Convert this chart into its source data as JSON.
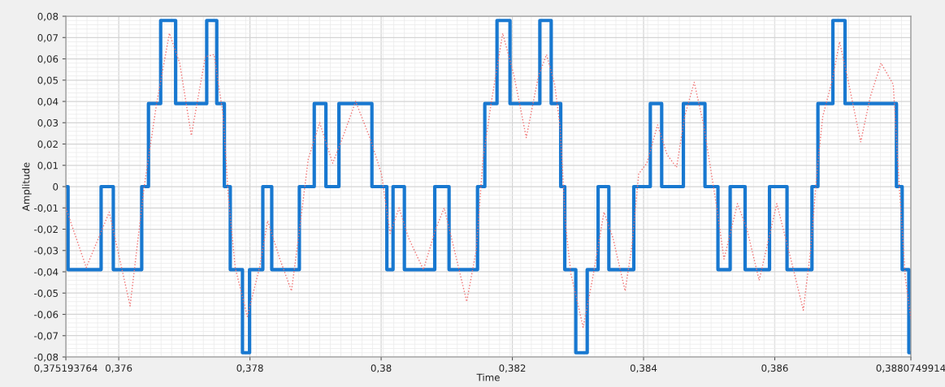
{
  "chart_data": {
    "type": "line",
    "xlabel": "Time",
    "ylabel": "Amplitude",
    "xlim": [
      0.375193764,
      0.3880749914
    ],
    "xticks": [
      {
        "value": 0.375193764,
        "label": "0,375193764"
      },
      {
        "value": 0.376,
        "label": "0,376"
      },
      {
        "value": 0.378,
        "label": "0,378"
      },
      {
        "value": 0.38,
        "label": "0,38"
      },
      {
        "value": 0.382,
        "label": "0,382"
      },
      {
        "value": 0.384,
        "label": "0,384"
      },
      {
        "value": 0.386,
        "label": "0,386"
      },
      {
        "value": 0.3880749914,
        "label": "0,3880749914"
      }
    ],
    "ylim": [
      -0.08,
      0.08
    ],
    "yticks": [
      {
        "value": -0.08,
        "label": "-0,08"
      },
      {
        "value": -0.07,
        "label": "-0,07"
      },
      {
        "value": -0.06,
        "label": "-0,06"
      },
      {
        "value": -0.05,
        "label": "-0,05"
      },
      {
        "value": -0.04,
        "label": "-0,04"
      },
      {
        "value": -0.03,
        "label": "-0,03"
      },
      {
        "value": -0.02,
        "label": "-0,02"
      },
      {
        "value": -0.01,
        "label": "-0,01"
      },
      0,
      {
        "value": 0.01,
        "label": "0,01"
      },
      {
        "value": 0.02,
        "label": "0,02"
      },
      {
        "value": 0.03,
        "label": "0,03"
      },
      {
        "value": 0.04,
        "label": "0,04"
      },
      {
        "value": 0.05,
        "label": "0,05"
      },
      {
        "value": 0.06,
        "label": "0,06"
      },
      {
        "value": 0.07,
        "label": "0,07"
      },
      {
        "value": 0.08,
        "label": "0,08"
      }
    ],
    "grid": true,
    "series": [
      {
        "line_style": "dotted",
        "color": "#f07070",
        "x": [
          0.375194,
          0.375505,
          0.375855,
          0.376173,
          0.376388,
          0.376577,
          0.376772,
          0.376929,
          0.377106,
          0.37732,
          0.377453,
          0.377589,
          0.377672,
          0.377775,
          0.37796,
          0.378146,
          0.37827,
          0.378456,
          0.378633,
          0.378744,
          0.378889,
          0.379063,
          0.379261,
          0.379425,
          0.379611,
          0.379839,
          0.380004,
          0.380136,
          0.380273,
          0.380416,
          0.380644,
          0.38083,
          0.380961,
          0.381118,
          0.381304,
          0.381449,
          0.381552,
          0.381676,
          0.381853,
          0.382026,
          0.382212,
          0.382398,
          0.382521,
          0.382645,
          0.382728,
          0.382811,
          0.382893,
          0.383079,
          0.383224,
          0.383397,
          0.383533,
          0.383719,
          0.383822,
          0.383926,
          0.38405,
          0.384214,
          0.384359,
          0.384503,
          0.384627,
          0.384772,
          0.384916,
          0.385122,
          0.385226,
          0.385432,
          0.385576,
          0.385762,
          0.386031,
          0.386237,
          0.386435,
          0.386546,
          0.38665,
          0.386732,
          0.386877,
          0.386988,
          0.387103,
          0.38731,
          0.387455,
          0.38762,
          0.387806,
          0.387888,
          0.387991,
          0.3880749914
        ],
        "values": [
          -0.01,
          -0.038,
          -0.012,
          -0.056,
          0.0,
          0.039,
          0.072,
          0.058,
          0.024,
          0.061,
          0.062,
          0.034,
          -0.005,
          -0.038,
          -0.061,
          -0.038,
          -0.016,
          -0.034,
          -0.049,
          -0.023,
          0.013,
          0.03,
          0.011,
          0.024,
          0.04,
          0.022,
          0.006,
          -0.022,
          -0.01,
          -0.024,
          -0.039,
          -0.02,
          -0.01,
          -0.03,
          -0.054,
          -0.03,
          0.013,
          0.039,
          0.072,
          0.052,
          0.023,
          0.052,
          0.062,
          0.048,
          0.028,
          -0.018,
          -0.041,
          -0.066,
          -0.043,
          -0.012,
          -0.024,
          -0.049,
          -0.028,
          0.006,
          0.011,
          0.029,
          0.015,
          0.009,
          0.033,
          0.049,
          0.029,
          -0.011,
          -0.034,
          -0.008,
          -0.02,
          -0.044,
          -0.008,
          -0.033,
          -0.058,
          -0.03,
          0.009,
          0.033,
          0.05,
          0.068,
          0.052,
          0.021,
          0.042,
          0.058,
          0.048,
          0.005,
          -0.043,
          -0.062
        ]
      },
      {
        "type": "step",
        "line_style": "solid",
        "color": "#1878d0",
        "x": [
          0.375193764,
          0.375227,
          0.375731,
          0.375917,
          0.37635,
          0.376453,
          0.376639,
          0.376867,
          0.377341,
          0.377494,
          0.37761,
          0.3777,
          0.377886,
          0.377994,
          0.378196,
          0.378332,
          0.378753,
          0.37898,
          0.379158,
          0.379356,
          0.379859,
          0.380087,
          0.380181,
          0.380354,
          0.380817,
          0.381035,
          0.381469,
          0.38158,
          0.381766,
          0.381964,
          0.382419,
          0.382592,
          0.382737,
          0.382799,
          0.382967,
          0.383141,
          0.383307,
          0.383471,
          0.383851,
          0.384103,
          0.384276,
          0.384607,
          0.384936,
          0.385134,
          0.38532,
          0.385548,
          0.38592,
          0.386187,
          0.386567,
          0.386658,
          0.386886,
          0.387071,
          0.387855,
          0.387942,
          0.388044,
          0.3880749914
        ],
        "values": [
          0,
          -0.039,
          0,
          -0.039,
          0,
          0.039,
          0.078,
          0.039,
          0.078,
          0.039,
          0,
          -0.039,
          -0.078,
          -0.039,
          0,
          -0.039,
          0,
          0.039,
          0,
          0.039,
          0,
          -0.039,
          0,
          -0.039,
          0,
          -0.039,
          0,
          0.039,
          0.078,
          0.039,
          0.078,
          0.039,
          0,
          -0.039,
          -0.078,
          -0.039,
          0,
          -0.039,
          0,
          0.039,
          0,
          0.039,
          0,
          -0.039,
          0,
          -0.039,
          0,
          -0.039,
          0,
          0.039,
          0.078,
          0.039,
          0,
          -0.039,
          -0.078,
          -0.078
        ]
      }
    ]
  }
}
